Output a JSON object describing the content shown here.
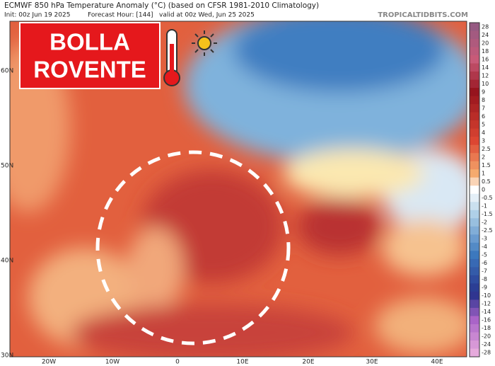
{
  "header": {
    "title": "ECMWF 850 hPa Temperature Anomaly (°C) (based on CFSR 1981-2010 Climatology)",
    "init": "Init: 00z Jun 19 2025",
    "forecast_hour": "Forecast Hour: [144]",
    "valid": "valid at 00z Wed, Jun 25 2025",
    "source": "TROPICALTIDBITS.COM"
  },
  "banner": {
    "line1": "BOLLA",
    "line2": "ROVENTE"
  },
  "map": {
    "lat_labels": [
      "60N",
      "50N",
      "40N",
      "30N"
    ],
    "lon_labels": [
      "20W",
      "10W",
      "0",
      "10E",
      "20E",
      "30E",
      "40E"
    ]
  },
  "colorbar": {
    "labels": [
      "28",
      "24",
      "20",
      "18",
      "16",
      "14",
      "12",
      "10",
      "9",
      "8",
      "7",
      "6",
      "5",
      "4",
      "3",
      "2.5",
      "2",
      "1.5",
      "1",
      "0.5",
      "0",
      "-0.5",
      "-1",
      "-1.5",
      "-2",
      "-2.5",
      "-3",
      "-4",
      "-5",
      "-6",
      "-7",
      "-8",
      "-9",
      "-10",
      "-12",
      "-14",
      "-16",
      "-18",
      "-20",
      "-24",
      "-28"
    ]
  }
}
